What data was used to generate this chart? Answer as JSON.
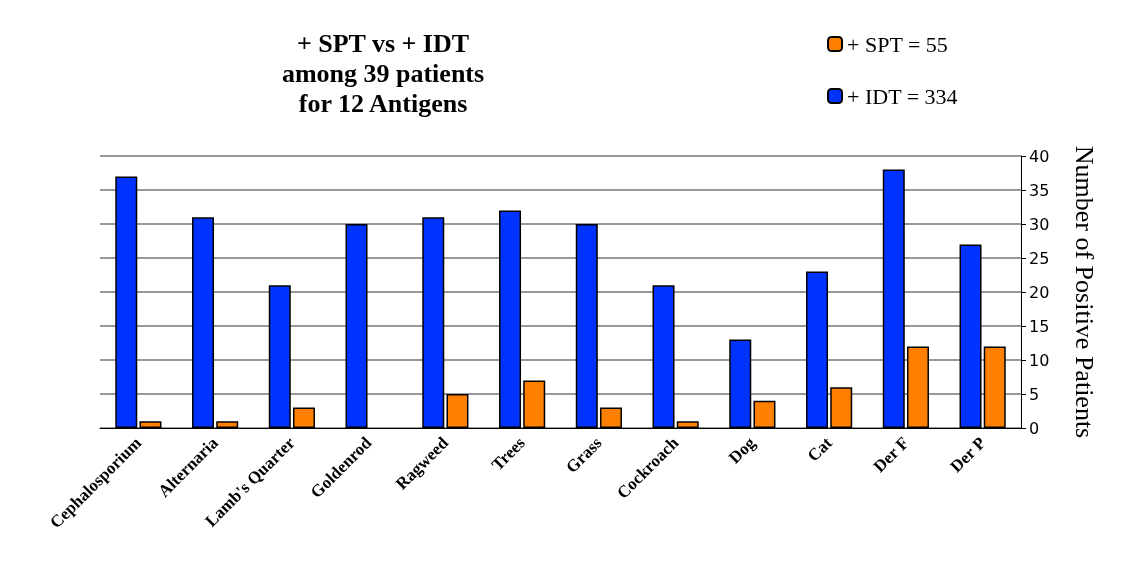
{
  "chart_data": {
    "type": "bar",
    "title": "+ SPT vs + IDT\namong 39 patients\nfor 12 Antigens",
    "ylabel": "Number of Positive Patients",
    "categories": [
      "Cephalosporium",
      "Alternaria",
      "Lamb's Quarter",
      "Goldenrod",
      "Ragweed",
      "Trees",
      "Grass",
      "Cockroach",
      "Dog",
      "Cat",
      "Der F",
      "Der P"
    ],
    "series": [
      {
        "name": "+ IDT = 334",
        "color": "#0033ff",
        "values": [
          37,
          31,
          21,
          30,
          31,
          32,
          30,
          21,
          13,
          23,
          38,
          27
        ]
      },
      {
        "name": "+ SPT = 55",
        "color": "#ff7f00",
        "values": [
          1,
          1,
          3,
          0,
          5,
          7,
          3,
          1,
          4,
          6,
          12,
          12
        ]
      }
    ],
    "ylim": [
      0,
      40
    ],
    "yticks": [
      0,
      5,
      10,
      15,
      20,
      25,
      30,
      35,
      40
    ],
    "grid": "y",
    "legend": "top right"
  }
}
